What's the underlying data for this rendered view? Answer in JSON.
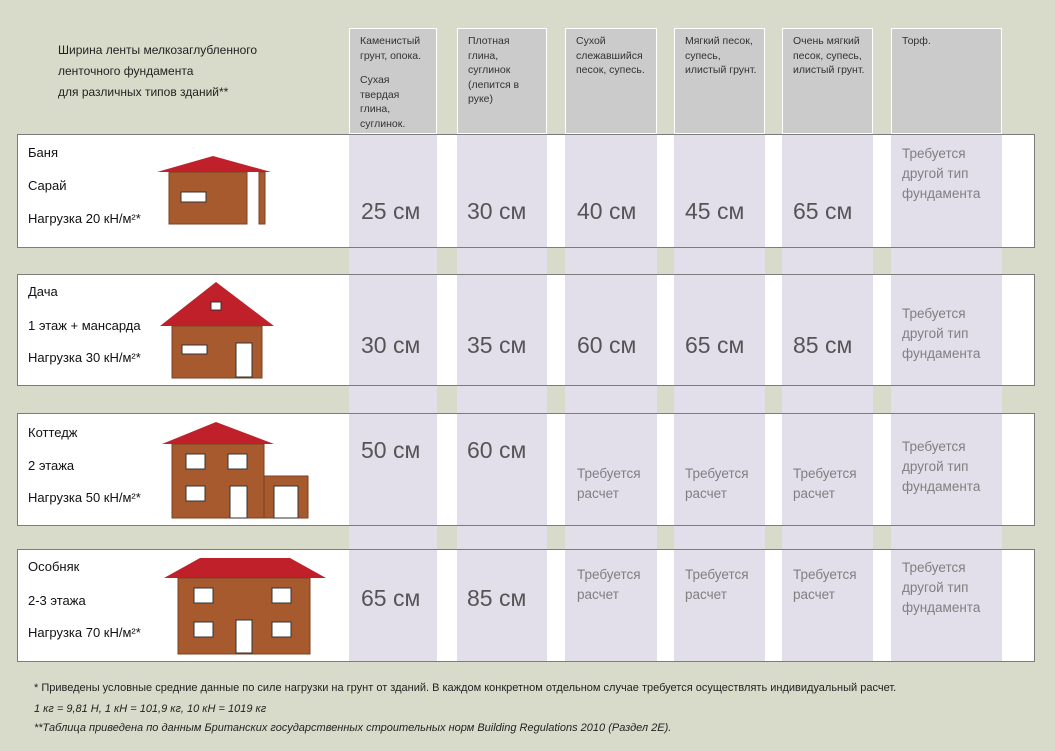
{
  "title": {
    "line1": "Ширина ленты мелкозаглубленного",
    "line2": "ленточного фундамента",
    "line3": "для различных типов зданий**"
  },
  "columns": [
    {
      "p1": "Каменистый грунт, опока.",
      "p2": "Сухая твердая глина, суглинок."
    },
    {
      "p1": "Плотная глина, суглинок (лепится в руке)",
      "p2": ""
    },
    {
      "p1": "Сухой слежавшийся песок, супесь.",
      "p2": ""
    },
    {
      "p1": "Мягкий песок, супесь, илистый грунт.",
      "p2": ""
    },
    {
      "p1": "Очень мягкий песок, супесь, илистый грунт.",
      "p2": ""
    },
    {
      "p1": "Торф.",
      "p2": ""
    }
  ],
  "rows": [
    {
      "name": "Баня",
      "sub": "Сарай",
      "load": "Нагрузка 20 кН/м²*",
      "values": [
        "25 см",
        "30 см",
        "40 см",
        "45 см",
        "65 см"
      ],
      "peat": "Требуется другой тип фундамента"
    },
    {
      "name": "Дача",
      "sub": "1 этаж + мансарда",
      "load": "Нагрузка 30 кН/м²*",
      "values": [
        "30 см",
        "35 см",
        "60 см",
        "65 см",
        "85 см"
      ],
      "peat": "Требуется другой тип фундамента"
    },
    {
      "name": "Коттедж",
      "sub": "2 этажа",
      "load": "Нагрузка 50 кН/м²*",
      "values": [
        "50 см",
        "60 см",
        "Требуется расчет",
        "Требуется расчет",
        "Требуется расчет"
      ],
      "peat": "Требуется другой тип фундамента"
    },
    {
      "name": "Особняк",
      "sub": "2-3 этажа",
      "load": "Нагрузка 70 кН/м²*",
      "values": [
        "65 см",
        "85 см",
        "Требуется расчет",
        "Требуется расчет",
        "Требуется расчет"
      ],
      "peat": "Требуется другой тип фундамента"
    }
  ],
  "footer": {
    "note1": "* Приведены условные средние данные по силе нагрузки на грунт от зданий.  В каждом конкретном отдельном случае  требуется осуществлять индивидуальный  расчет.",
    "note2": "1 кг = 9,81 Н,  1 кН = 101,9 кг,  10 кН = 1019 кг",
    "note3": "**Таблица приведена по данным  Британских государственных строительных норм Building Regulations  2010 (Раздел 2Е)."
  },
  "colors": {
    "brick": "#a65a2e",
    "roof": "#c0202a",
    "stripe": "#e2deea",
    "header": "#cbcbcb"
  }
}
